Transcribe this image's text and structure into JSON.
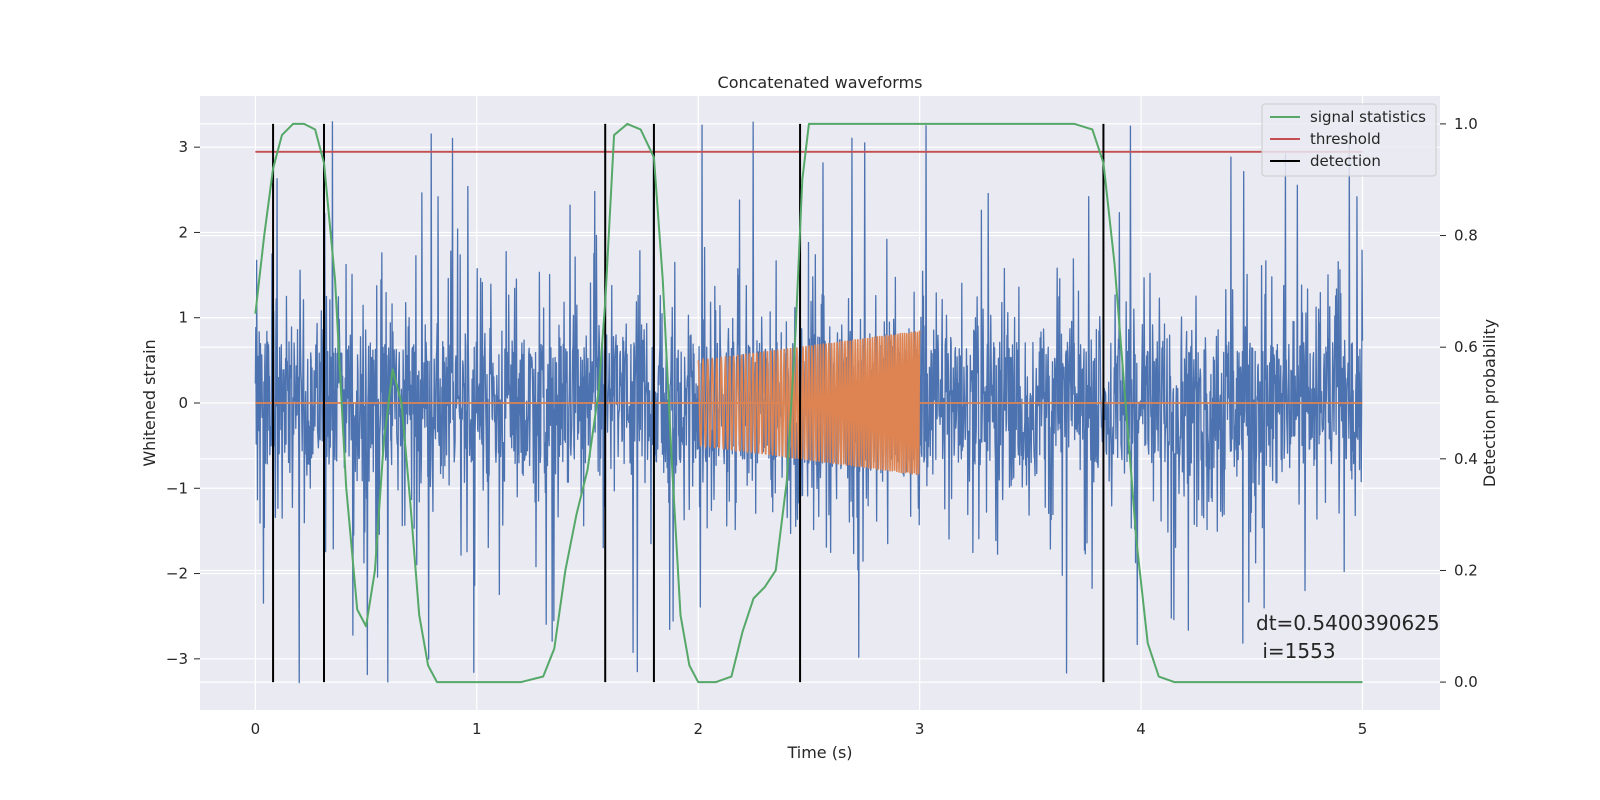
{
  "chart_data": {
    "type": "line",
    "title": "Concatenated waveforms",
    "xlabel": "Time (s)",
    "ylabel_left": "Whitened strain",
    "ylabel_right": "Detection probability",
    "xlim": [
      -0.25,
      5.35
    ],
    "ylim_left": [
      -3.6,
      3.6
    ],
    "ylim_right": [
      -0.05,
      1.05
    ],
    "x_ticks": [
      0,
      1,
      2,
      3,
      4,
      5
    ],
    "y_left_ticks": [
      -3,
      -2,
      -1,
      0,
      1,
      2,
      3
    ],
    "y_left_tick_labels": [
      "−3",
      "−2",
      "−1",
      "0",
      "1",
      "2",
      "3"
    ],
    "y_right_ticks": [
      0.0,
      0.2,
      0.4,
      0.6,
      0.8,
      1.0
    ],
    "y_right_tick_labels": [
      "0.0",
      "0.2",
      "0.4",
      "0.6",
      "0.8",
      "1.0"
    ],
    "grid": true,
    "legend_position": "top-right",
    "colors": {
      "noise": "#4c72b0",
      "injection": "#dd8452",
      "signal_statistics": "#55a868",
      "threshold": "#c44e52",
      "detection": "#000000",
      "background": "#eaeaf2",
      "grid": "#ffffff"
    },
    "series": [
      {
        "name": "signal statistics",
        "axis": "right",
        "x": [
          0.0,
          0.04,
          0.08,
          0.12,
          0.17,
          0.22,
          0.27,
          0.31,
          0.36,
          0.41,
          0.46,
          0.5,
          0.54,
          0.58,
          0.62,
          0.66,
          0.7,
          0.74,
          0.78,
          0.82,
          0.9,
          1.0,
          1.2,
          1.3,
          1.35,
          1.4,
          1.45,
          1.5,
          1.55,
          1.58,
          1.62,
          1.68,
          1.74,
          1.8,
          1.84,
          1.88,
          1.92,
          1.96,
          2.0,
          2.08,
          2.15,
          2.2,
          2.25,
          2.3,
          2.35,
          2.4,
          2.44,
          2.47,
          2.5,
          2.55,
          3.7,
          3.78,
          3.83,
          3.88,
          3.93,
          3.98,
          4.03,
          4.08,
          4.15,
          5.0
        ],
        "y": [
          0.66,
          0.8,
          0.92,
          0.98,
          1.0,
          1.0,
          0.99,
          0.93,
          0.72,
          0.35,
          0.13,
          0.1,
          0.2,
          0.43,
          0.56,
          0.5,
          0.32,
          0.12,
          0.03,
          0.0,
          0.0,
          0.0,
          0.0,
          0.01,
          0.06,
          0.2,
          0.3,
          0.38,
          0.52,
          0.68,
          0.98,
          1.0,
          0.99,
          0.94,
          0.72,
          0.4,
          0.12,
          0.03,
          0.0,
          0.0,
          0.01,
          0.09,
          0.15,
          0.17,
          0.2,
          0.36,
          0.63,
          0.9,
          1.0,
          1.0,
          1.0,
          0.99,
          0.93,
          0.75,
          0.5,
          0.25,
          0.07,
          0.01,
          0.0,
          0.0
        ]
      },
      {
        "name": "threshold",
        "axis": "right",
        "x": [
          0.0,
          5.0
        ],
        "y": [
          0.95,
          0.95
        ]
      },
      {
        "name": "detection",
        "axis": "right",
        "type": "vlines",
        "x": [
          0.08,
          0.31,
          1.58,
          1.8,
          2.46,
          3.83
        ],
        "y_range": [
          0.0,
          1.0
        ]
      },
      {
        "name": "noise",
        "axis": "left",
        "type": "noise",
        "x_range": [
          0.0,
          5.0
        ],
        "core_amplitude": 0.7,
        "peak_range": [
          -3.3,
          3.3
        ]
      },
      {
        "name": "injection",
        "axis": "left",
        "type": "chirp",
        "x_range": [
          2.0,
          3.0
        ],
        "amplitude": [
          0.5,
          0.85
        ],
        "baseline": 0.0
      }
    ],
    "annotation": {
      "lines": [
        "dt=0.5400390625",
        " i=1553"
      ]
    }
  },
  "legend": {
    "items": [
      {
        "label": "signal statistics",
        "color": "#55a868"
      },
      {
        "label": "threshold",
        "color": "#c44e52"
      },
      {
        "label": "detection",
        "color": "#000000"
      }
    ]
  }
}
